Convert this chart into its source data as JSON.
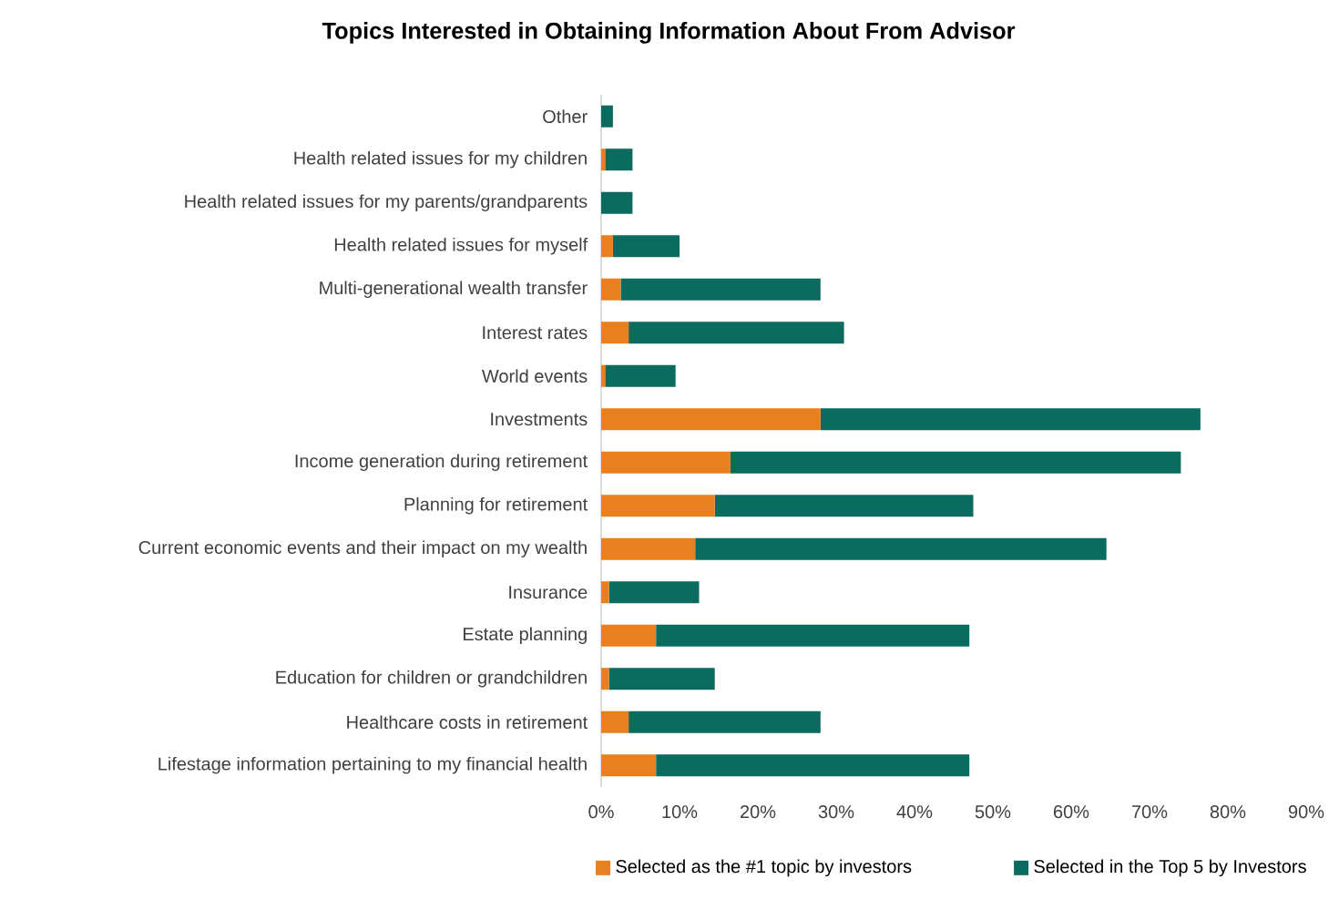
{
  "chart_data": {
    "type": "bar",
    "orientation": "horizontal",
    "stacked": true,
    "title": "Topics Interested in Obtaining Information About From Advisor",
    "categories": [
      "Other",
      "Health related issues for my children",
      "Health related issues for my parents/grandparents",
      "Health related issues for myself",
      "Multi-generational wealth transfer",
      "Interest rates",
      "World events",
      "Investments",
      "Income generation during retirement",
      "Planning for retirement",
      "Current economic events and their impact on my wealth",
      "Insurance",
      "Estate planning",
      "Education for children or grandchildren",
      "Healthcare costs in retirement",
      "Lifestage information pertaining to my financial health"
    ],
    "series": [
      {
        "name": "Selected as the #1 topic by investors",
        "color": "#e8801f",
        "values": [
          0,
          0.5,
          0,
          1.5,
          2.5,
          3.5,
          0.5,
          28,
          16.5,
          14.5,
          12,
          1,
          7,
          1,
          3.5,
          7
        ]
      },
      {
        "name": "Selected in the Top 5 by Investors",
        "color": "#0b6b5e",
        "values": [
          1.5,
          3.5,
          4,
          8.5,
          25.5,
          27.5,
          9,
          48.5,
          57.5,
          33,
          52.5,
          11.5,
          40,
          13.5,
          24.5,
          40
        ]
      }
    ],
    "xlim": [
      0,
      90
    ],
    "xticks": [
      {
        "value": 0,
        "label": "0%"
      },
      {
        "value": 10,
        "label": "10%"
      },
      {
        "value": 20,
        "label": "20%"
      },
      {
        "value": 30,
        "label": "30%"
      },
      {
        "value": 40,
        "label": "40%"
      },
      {
        "value": 50,
        "label": "50%"
      },
      {
        "value": 60,
        "label": "60%"
      },
      {
        "value": 70,
        "label": "70%"
      },
      {
        "value": 80,
        "label": "80%"
      },
      {
        "value": 90,
        "label": "90%"
      }
    ],
    "legend": "bottom"
  }
}
